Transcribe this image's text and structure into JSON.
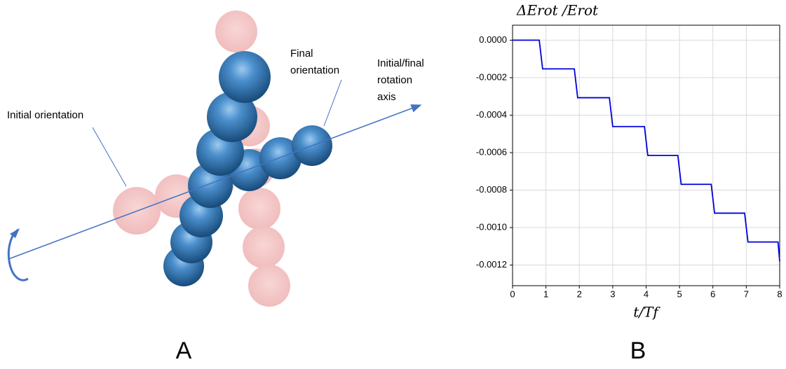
{
  "panel_a": {
    "label": "A",
    "initial_orientation": "Initial orientation",
    "final_orientation": [
      "Final",
      "orientation"
    ],
    "rotation_axis": [
      "Initial/final",
      "rotation",
      "axis"
    ]
  },
  "chart_data": {
    "type": "line",
    "label": "B",
    "title": "ΔErot /Erot",
    "xlabel": "t/Tf",
    "x": [
      0,
      0.8,
      0.9,
      1.85,
      1.95,
      2.9,
      3.0,
      3.95,
      4.05,
      4.95,
      5.05,
      5.95,
      6.05,
      6.95,
      7.05,
      7.95,
      8.0
    ],
    "series": [
      {
        "color": "#0000dd",
        "values": [
          0,
          0,
          -0.000153,
          -0.000153,
          -0.000307,
          -0.000307,
          -0.000461,
          -0.000461,
          -0.000615,
          -0.000615,
          -0.000769,
          -0.000769,
          -0.000923,
          -0.000923,
          -0.001077,
          -0.001077,
          -0.00118
        ]
      }
    ],
    "xlim": [
      0,
      8
    ],
    "xticks": [
      0,
      1,
      2,
      3,
      4,
      5,
      6,
      7,
      8
    ],
    "ylim": [
      -0.00131,
      8e-05
    ],
    "yticks": [
      {
        "value": 0,
        "label": "0.0000"
      },
      {
        "value": -0.0002,
        "label": "-0.0002"
      },
      {
        "value": -0.0004,
        "label": "-0.0004"
      },
      {
        "value": -0.0006,
        "label": "-0.0006"
      },
      {
        "value": -0.0008,
        "label": "-0.0008"
      },
      {
        "value": -0.001,
        "label": "-0.0010"
      },
      {
        "value": -0.0012,
        "label": "-0.0012"
      }
    ],
    "grid": true
  }
}
